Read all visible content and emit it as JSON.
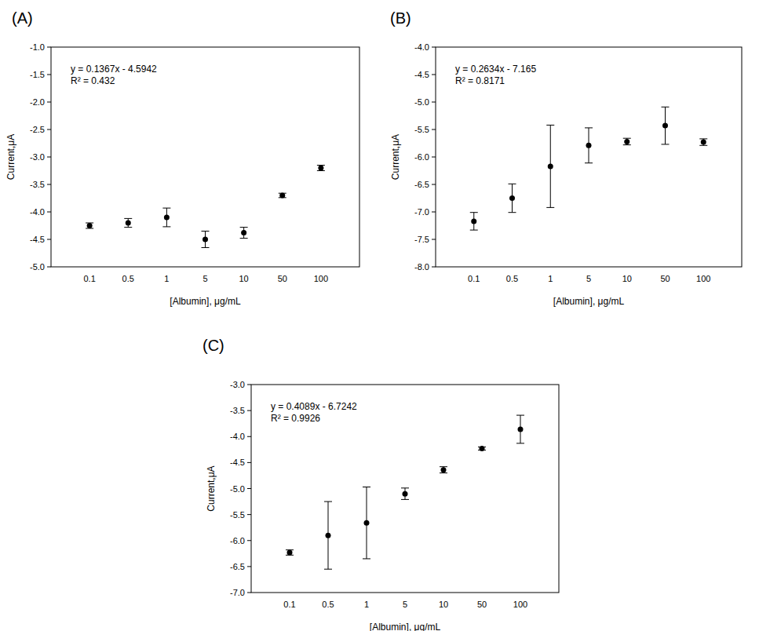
{
  "chart_data": [
    {
      "type": "scatter",
      "title": "(A)",
      "annotations": [
        "y = 0.1367x - 4.5942",
        "R² = 0.432"
      ],
      "x_label": "[Albumin], μg/mL",
      "y_label": "Current,μA",
      "categories": [
        "0.1",
        "0.5",
        "1",
        "5",
        "10",
        "50",
        "100"
      ],
      "values": [
        -4.25,
        -4.2,
        -4.1,
        -4.5,
        -4.38,
        -3.7,
        -3.2
      ],
      "errors": [
        0.05,
        0.08,
        0.17,
        0.15,
        0.1,
        0.04,
        0.05
      ],
      "ylim": [
        -5,
        -1
      ],
      "yticks": [
        {
          "value": -5,
          "label": "-5.0"
        },
        -4.5,
        {
          "value": -4,
          "label": "-4.0"
        },
        -3.5,
        {
          "value": -3,
          "label": "-3.0"
        },
        -2.5,
        {
          "value": -2,
          "label": "-2.0"
        },
        -1.5,
        {
          "value": -1,
          "label": "-1.0"
        }
      ],
      "color": "#000000",
      "marker": "circle"
    },
    {
      "type": "scatter",
      "title": "(B)",
      "annotations": [
        "y = 0.2634x - 7.165",
        "R² = 0.8171"
      ],
      "x_label": "[Albumin], μg/mL",
      "y_label": "Current,μA",
      "categories": [
        "0.1",
        "0.5",
        "1",
        "5",
        "10",
        "50",
        "100"
      ],
      "values": [
        -7.17,
        -6.75,
        -6.17,
        -5.79,
        -5.72,
        -5.43,
        -5.73
      ],
      "errors": [
        0.16,
        0.26,
        0.75,
        0.32,
        0.06,
        0.34,
        0.06
      ],
      "ylim": [
        -8,
        -4
      ],
      "yticks": [
        {
          "value": -8,
          "label": "-8.0"
        },
        -7.5,
        {
          "value": -7,
          "label": "-7.0"
        },
        -6.5,
        {
          "value": -6,
          "label": "-6.0"
        },
        -5.5,
        {
          "value": -5,
          "label": "-5.0"
        },
        -4.5,
        {
          "value": -4,
          "label": "-4.0"
        }
      ],
      "color": "#000000",
      "marker": "circle"
    },
    {
      "type": "scatter",
      "title": "(C)",
      "annotations": [
        "y = 0.4089x - 6.7242",
        "R² = 0.9926"
      ],
      "x_label": "[Albumin], μg/mL",
      "y_label": "Current,μA",
      "categories": [
        "0.1",
        "0.5",
        "1",
        "5",
        "10",
        "50",
        "100"
      ],
      "values": [
        -6.23,
        -5.9,
        -5.66,
        -5.1,
        -4.64,
        -4.23,
        -3.86
      ],
      "errors": [
        0.05,
        0.65,
        0.69,
        0.11,
        0.06,
        0.03,
        0.27
      ],
      "ylim": [
        -7,
        -3
      ],
      "yticks": [
        {
          "value": -7,
          "label": "-7.0"
        },
        -6.5,
        {
          "value": -6,
          "label": "-6.0"
        },
        -5.5,
        {
          "value": -5,
          "label": "-5.0"
        },
        -4.5,
        {
          "value": -4,
          "label": "-4.0"
        },
        -3.5,
        {
          "value": -3,
          "label": "-3.0"
        }
      ],
      "color": "#000000",
      "marker": "circle"
    }
  ]
}
